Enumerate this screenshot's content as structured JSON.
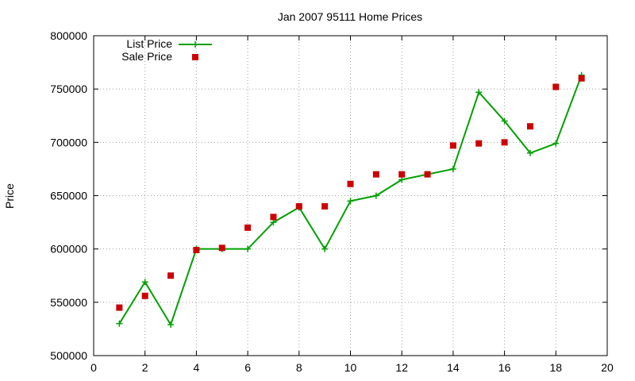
{
  "chart_data": {
    "type": "line",
    "title": "Jan 2007 95111 Home Prices",
    "xlabel": "",
    "ylabel": "Price",
    "xlim": [
      0,
      20
    ],
    "ylim": [
      500000,
      800000
    ],
    "x_ticks": [
      "0",
      "2",
      "4",
      "6",
      "8",
      "10",
      "12",
      "14",
      "16",
      "18",
      "20"
    ],
    "y_ticks": [
      "500000",
      "550000",
      "600000",
      "650000",
      "700000",
      "750000",
      "800000"
    ],
    "grid": true,
    "legend_position": "top-left",
    "series": [
      {
        "name": "List Price",
        "style": "line-with-plus-markers",
        "color": "#00a000",
        "x": [
          1,
          2,
          3,
          4,
          5,
          6,
          7,
          8,
          9,
          10,
          11,
          12,
          13,
          14,
          15,
          16,
          17,
          18,
          19
        ],
        "y": [
          530000,
          569000,
          529000,
          600000,
          600000,
          600000,
          625000,
          639000,
          600000,
          645000,
          650000,
          665000,
          670000,
          675000,
          747000,
          720000,
          690000,
          699000,
          763000
        ]
      },
      {
        "name": "Sale Price",
        "style": "square-markers",
        "color": "#cc0000",
        "x": [
          1,
          2,
          3,
          4,
          5,
          6,
          7,
          8,
          9,
          10,
          11,
          12,
          13,
          14,
          15,
          16,
          17,
          18,
          19
        ],
        "y": [
          545000,
          556000,
          575000,
          599000,
          601000,
          620000,
          630000,
          640000,
          640000,
          661000,
          670000,
          670000,
          670000,
          697000,
          699000,
          700000,
          715000,
          752000,
          760000
        ]
      }
    ]
  }
}
